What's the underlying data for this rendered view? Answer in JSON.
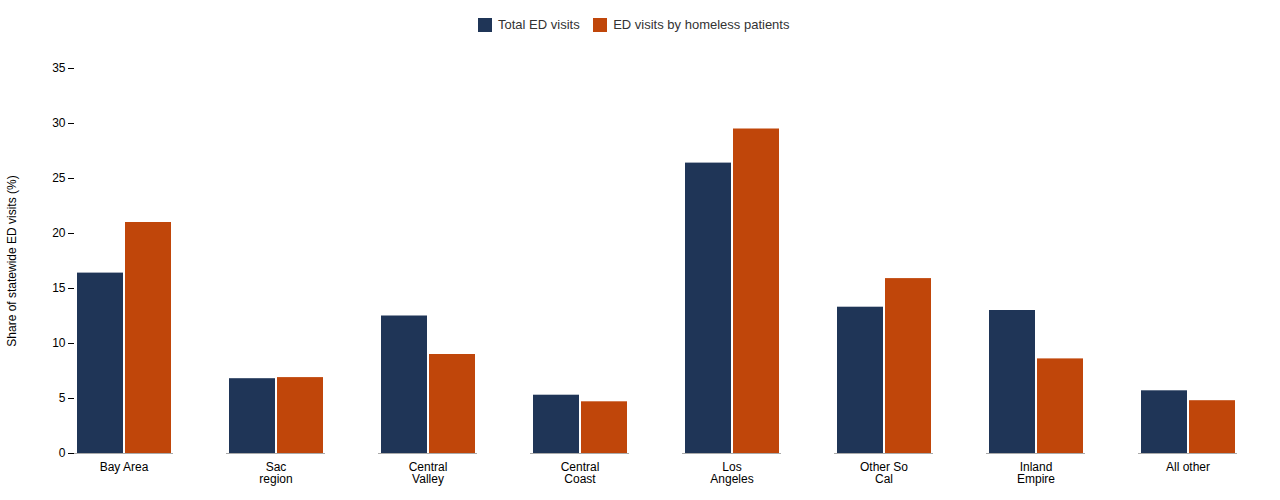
{
  "chart_data": {
    "type": "bar",
    "categories": [
      "Bay Area",
      "Sac\nregion",
      "Central\nValley",
      "Central\nCoast",
      "Los\nAngeles",
      "Other So\nCal",
      "Inland\nEmpire",
      "All other"
    ],
    "series": [
      {
        "name": "Total ED visits",
        "color": "#1f3557",
        "values": [
          16.4,
          6.8,
          12.5,
          5.3,
          26.4,
          13.3,
          13.0,
          5.7
        ]
      },
      {
        "name": "ED visits by homeless patients",
        "color": "#c0460a",
        "values": [
          21.0,
          6.9,
          9.0,
          4.7,
          29.5,
          15.9,
          8.6,
          4.8
        ]
      }
    ],
    "ylabel": "Share of statewide ED visits (%)",
    "ylim": [
      0,
      35
    ],
    "yticks": [
      0,
      5,
      10,
      15,
      20,
      25,
      30,
      35
    ],
    "grid": false,
    "legend": "top"
  }
}
